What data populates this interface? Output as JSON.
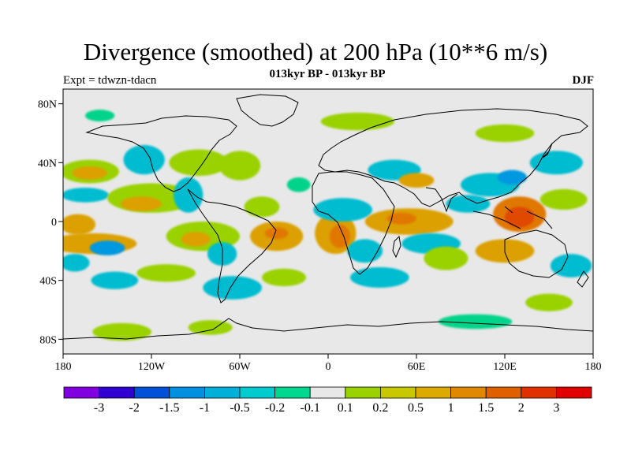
{
  "header": {
    "title": "Divergence (smoothed) at 200 hPa (10**6 m/s)",
    "subtitle": "013kyr BP - 013kyr BP",
    "experiment": "Expt = tdwzn-tdacn",
    "season": "DJF"
  },
  "map": {
    "lon_range": [
      -180,
      180
    ],
    "lat_range": [
      -90,
      90
    ],
    "projection": "cylindrical equidistant",
    "background_color": "#e8e8e8",
    "coastline_color": "#000000",
    "lon_ticks": [
      {
        "value": -180,
        "label": "180"
      },
      {
        "value": -120,
        "label": "120W"
      },
      {
        "value": -60,
        "label": "60W"
      },
      {
        "value": 0,
        "label": "0"
      },
      {
        "value": 60,
        "label": "60E"
      },
      {
        "value": 120,
        "label": "120E"
      },
      {
        "value": 180,
        "label": "180"
      }
    ],
    "lat_ticks": [
      {
        "value": 80,
        "label": "80N"
      },
      {
        "value": 40,
        "label": "40N"
      },
      {
        "value": 0,
        "label": "0"
      },
      {
        "value": -40,
        "label": "40S"
      },
      {
        "value": -80,
        "label": "80S"
      }
    ],
    "anomaly_blobs": [
      {
        "lon": -162,
        "lat": 34,
        "rlon": 20,
        "rlat": 8,
        "color": "#9ad200"
      },
      {
        "lon": -162,
        "lat": 33,
        "rlon": 12,
        "rlat": 4.5,
        "color": "#dca000"
      },
      {
        "lon": -165,
        "lat": 18,
        "rlon": 16,
        "rlat": 5,
        "color": "#00bcd0"
      },
      {
        "lon": -120,
        "lat": 16,
        "rlon": 30,
        "rlat": 10,
        "color": "#9ad200"
      },
      {
        "lon": -127,
        "lat": 12,
        "rlon": 14,
        "rlat": 5,
        "color": "#dca000"
      },
      {
        "lon": -125,
        "lat": 42,
        "rlon": 14,
        "rlat": 10,
        "color": "#00bcd0"
      },
      {
        "lon": -88,
        "lat": 40,
        "rlon": 20,
        "rlat": 9,
        "color": "#9ad200"
      },
      {
        "lon": -95,
        "lat": 18,
        "rlon": 10,
        "rlat": 12,
        "color": "#00bcd0"
      },
      {
        "lon": -60,
        "lat": 38,
        "rlon": 14,
        "rlat": 10,
        "color": "#9ad200"
      },
      {
        "lon": -20,
        "lat": 25,
        "rlon": 8,
        "rlat": 5,
        "color": "#00d48a"
      },
      {
        "lon": -45,
        "lat": 10,
        "rlon": 12,
        "rlat": 7,
        "color": "#9ad200"
      },
      {
        "lon": -170,
        "lat": -2,
        "rlon": 12,
        "rlat": 7,
        "color": "#dca000"
      },
      {
        "lon": -160,
        "lat": -15,
        "rlon": 30,
        "rlat": 7,
        "color": "#dca000"
      },
      {
        "lon": -172,
        "lat": -28,
        "rlon": 10,
        "rlat": 6,
        "color": "#00bcd0"
      },
      {
        "lon": -150,
        "lat": -18,
        "rlon": 12,
        "rlat": 5,
        "color": "#0098e0"
      },
      {
        "lon": -145,
        "lat": -40,
        "rlon": 16,
        "rlat": 6,
        "color": "#00bcd0"
      },
      {
        "lon": -110,
        "lat": -35,
        "rlon": 20,
        "rlat": 6,
        "color": "#9ad200"
      },
      {
        "lon": -85,
        "lat": -10,
        "rlon": 25,
        "rlat": 10,
        "color": "#9ad200"
      },
      {
        "lon": -90,
        "lat": -12,
        "rlon": 10,
        "rlat": 5,
        "color": "#dca000"
      },
      {
        "lon": -72,
        "lat": -22,
        "rlon": 10,
        "rlat": 8,
        "color": "#00bcd0"
      },
      {
        "lon": -35,
        "lat": -10,
        "rlon": 18,
        "rlat": 10,
        "color": "#dca000"
      },
      {
        "lon": -35,
        "lat": -8,
        "rlon": 8,
        "rlat": 4,
        "color": "#e07800"
      },
      {
        "lon": -65,
        "lat": -45,
        "rlon": 20,
        "rlat": 8,
        "color": "#00bcd0"
      },
      {
        "lon": -30,
        "lat": -38,
        "rlon": 15,
        "rlat": 6,
        "color": "#9ad200"
      },
      {
        "lon": -140,
        "lat": -75,
        "rlon": 20,
        "rlat": 6,
        "color": "#9ad200"
      },
      {
        "lon": -80,
        "lat": -72,
        "rlon": 15,
        "rlat": 5,
        "color": "#9ad200"
      },
      {
        "lon": 5,
        "lat": -8,
        "rlon": 14,
        "rlat": 14,
        "color": "#dca000"
      },
      {
        "lon": 8,
        "lat": -10,
        "rlon": 7,
        "rlat": 8,
        "color": "#e07800"
      },
      {
        "lon": 10,
        "lat": 8,
        "rlon": 20,
        "rlat": 8,
        "color": "#00bcd0"
      },
      {
        "lon": 25,
        "lat": -20,
        "rlon": 12,
        "rlat": 8,
        "color": "#00bcd0"
      },
      {
        "lon": 35,
        "lat": -38,
        "rlon": 20,
        "rlat": 7,
        "color": "#00bcd0"
      },
      {
        "lon": 45,
        "lat": 35,
        "rlon": 18,
        "rlat": 7,
        "color": "#00bcd0"
      },
      {
        "lon": 60,
        "lat": 28,
        "rlon": 12,
        "rlat": 5,
        "color": "#dca000"
      },
      {
        "lon": 55,
        "lat": 0,
        "rlon": 30,
        "rlat": 9,
        "color": "#dca000"
      },
      {
        "lon": 50,
        "lat": 2,
        "rlon": 10,
        "rlat": 4,
        "color": "#e07800"
      },
      {
        "lon": 70,
        "lat": -15,
        "rlon": 20,
        "rlat": 7,
        "color": "#00bcd0"
      },
      {
        "lon": 80,
        "lat": -25,
        "rlon": 15,
        "rlat": 8,
        "color": "#9ad200"
      },
      {
        "lon": 95,
        "lat": 12,
        "rlon": 15,
        "rlat": 6,
        "color": "#00bcd0"
      },
      {
        "lon": 110,
        "lat": 25,
        "rlon": 20,
        "rlat": 8,
        "color": "#00bcd0"
      },
      {
        "lon": 125,
        "lat": 30,
        "rlon": 10,
        "rlat": 5,
        "color": "#0098e0"
      },
      {
        "lon": 130,
        "lat": 5,
        "rlon": 18,
        "rlat": 12,
        "color": "#e07800"
      },
      {
        "lon": 130,
        "lat": 3,
        "rlon": 10,
        "rlat": 7,
        "color": "#e04800"
      },
      {
        "lon": 120,
        "lat": -20,
        "rlon": 20,
        "rlat": 8,
        "color": "#dca000"
      },
      {
        "lon": 155,
        "lat": 40,
        "rlon": 18,
        "rlat": 8,
        "color": "#00bcd0"
      },
      {
        "lon": 160,
        "lat": 15,
        "rlon": 16,
        "rlat": 7,
        "color": "#9ad200"
      },
      {
        "lon": 165,
        "lat": -30,
        "rlon": 14,
        "rlat": 8,
        "color": "#00bcd0"
      },
      {
        "lon": 150,
        "lat": -55,
        "rlon": 16,
        "rlat": 6,
        "color": "#9ad200"
      },
      {
        "lon": 100,
        "lat": -68,
        "rlon": 25,
        "rlat": 5,
        "color": "#00d48a"
      },
      {
        "lon": 20,
        "lat": 68,
        "rlon": 25,
        "rlat": 6,
        "color": "#9ad200"
      },
      {
        "lon": -155,
        "lat": 72,
        "rlon": 10,
        "rlat": 4,
        "color": "#00d48a"
      },
      {
        "lon": 120,
        "lat": 60,
        "rlon": 20,
        "rlat": 6,
        "color": "#9ad200"
      }
    ]
  },
  "colorbar": {
    "colors": [
      "#8000e0",
      "#3000d0",
      "#0050d8",
      "#0090e0",
      "#00b0d8",
      "#00ccd0",
      "#00d890",
      "#e8e8e8",
      "#9ad200",
      "#c8c800",
      "#dcaa00",
      "#e08800",
      "#e06000",
      "#e03000",
      "#e00000"
    ],
    "labels": [
      "-3",
      "-2",
      "-1.5",
      "-1",
      "-0.5",
      "-0.2",
      "-0.1",
      "0.1",
      "0.2",
      "0.5",
      "1",
      "1.5",
      "2",
      "3"
    ]
  }
}
